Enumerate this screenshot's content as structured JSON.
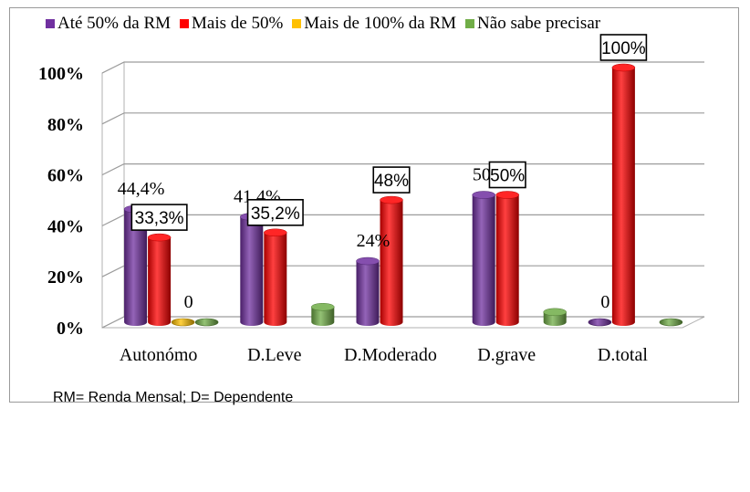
{
  "chart_data": {
    "type": "bar",
    "categories": [
      "Autonómo",
      "D.Leve",
      "D.Moderado",
      "D.grave",
      "D.total"
    ],
    "series": [
      {
        "name": "Até 50% da RM",
        "color": "#7030a0",
        "values": [
          44.4,
          41.4,
          24,
          50,
          0
        ]
      },
      {
        "name": "Mais de 50%",
        "color": "#ff0000",
        "values": [
          33.3,
          35.2,
          48,
          50,
          100
        ]
      },
      {
        "name": "Mais de 100% da RM",
        "color": "#ffc000",
        "values": [
          0,
          null,
          null,
          null,
          null
        ]
      },
      {
        "name": "Não sabe precisar",
        "color": "#70ad47",
        "values": [
          0,
          6,
          null,
          4,
          0
        ]
      }
    ],
    "data_labels": [
      {
        "series": 0,
        "category": 0,
        "text": "44,4%",
        "boxed": false
      },
      {
        "series": 1,
        "category": 0,
        "text": "33,3%",
        "boxed": true
      },
      {
        "series": 2,
        "category": 0,
        "text": "0",
        "boxed": false
      },
      {
        "series": 0,
        "category": 1,
        "text": "41,4%",
        "boxed": false
      },
      {
        "series": 1,
        "category": 1,
        "text": "35,2%",
        "boxed": true
      },
      {
        "series": 0,
        "category": 2,
        "text": "24%",
        "boxed": false
      },
      {
        "series": 1,
        "category": 2,
        "text": "48%",
        "boxed": true
      },
      {
        "series": 0,
        "category": 3,
        "text": "50%",
        "boxed": false
      },
      {
        "series": 1,
        "category": 3,
        "text": "50%",
        "boxed": true
      },
      {
        "series": 0,
        "category": 4,
        "text": "0",
        "boxed": false
      },
      {
        "series": 1,
        "category": 4,
        "text": "100%",
        "boxed": true
      }
    ],
    "y_ticks": [
      "0%",
      "20%",
      "40%",
      "60%",
      "80%",
      "100%"
    ],
    "ylim": [
      0,
      100
    ],
    "grid": true,
    "legend_position": "top"
  },
  "footnote": "RM= Renda Mensal; D= Dependente"
}
